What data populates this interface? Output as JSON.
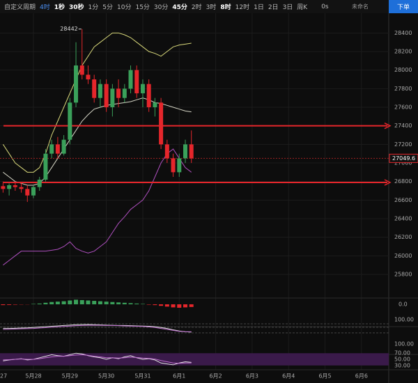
{
  "toolbar": {
    "label": "自定义周期",
    "periods": [
      "4时",
      "1秒",
      "30秒",
      "1分",
      "5分",
      "10分",
      "15分",
      "30分",
      "45分",
      "2时",
      "3时",
      "8时",
      "12时",
      "1日",
      "2日",
      "3日",
      "周K"
    ],
    "active_index": 0,
    "bold_indices": [
      1,
      2,
      8,
      11
    ],
    "timer": "0s",
    "layout_name": "未命名",
    "order_button": "下单"
  },
  "chart_data": {
    "type": "candlestick",
    "xticks": [
      {
        "value": -1,
        "label": "27"
      },
      {
        "value": 5,
        "label": "5月28"
      },
      {
        "value": 11,
        "label": "5月29"
      },
      {
        "value": 17,
        "label": "5月30"
      },
      {
        "value": 23,
        "label": "5月31"
      },
      {
        "value": 29,
        "label": "6月1"
      },
      {
        "value": 35,
        "label": "6月2"
      },
      {
        "value": 41,
        "label": "6月3"
      },
      {
        "value": 47,
        "label": "6月4"
      },
      {
        "value": 53,
        "label": "6月5"
      },
      {
        "value": 59,
        "label": "6月6"
      }
    ],
    "ylim": [
      25680,
      28530
    ],
    "yticks": [
      25800,
      26000,
      26200,
      26400,
      26600,
      26800,
      27000,
      27200,
      27400,
      27600,
      27800,
      28000,
      28200,
      28400
    ],
    "up_color": "#3aa05a",
    "down_color": "#e5262b",
    "candles": [
      {
        "open": 26750,
        "high": 26800,
        "low": 26680,
        "close": 26720
      },
      {
        "open": 26720,
        "high": 26780,
        "low": 26650,
        "close": 26760
      },
      {
        "open": 26760,
        "high": 26800,
        "low": 26700,
        "close": 26740
      },
      {
        "open": 26740,
        "high": 26790,
        "low": 26680,
        "close": 26720
      },
      {
        "open": 26720,
        "high": 26760,
        "low": 26580,
        "close": 26650
      },
      {
        "open": 26650,
        "high": 26760,
        "low": 26620,
        "close": 26740
      },
      {
        "open": 26740,
        "high": 26850,
        "low": 26700,
        "close": 26820
      },
      {
        "open": 26820,
        "high": 27150,
        "low": 26800,
        "close": 27100
      },
      {
        "open": 27100,
        "high": 27250,
        "low": 27050,
        "close": 27200
      },
      {
        "open": 27200,
        "high": 27280,
        "low": 27050,
        "close": 27100
      },
      {
        "open": 27100,
        "high": 27300,
        "low": 27080,
        "close": 27250
      },
      {
        "open": 27250,
        "high": 27700,
        "low": 27200,
        "close": 27650
      },
      {
        "open": 27650,
        "high": 28300,
        "low": 27600,
        "close": 28050
      },
      {
        "open": 28050,
        "high": 28442,
        "low": 27900,
        "close": 27950
      },
      {
        "open": 27950,
        "high": 28050,
        "low": 27850,
        "close": 27900
      },
      {
        "open": 27900,
        "high": 27950,
        "low": 27650,
        "close": 27700
      },
      {
        "open": 27700,
        "high": 27900,
        "low": 27600,
        "close": 27850
      },
      {
        "open": 27850,
        "high": 27900,
        "low": 27550,
        "close": 27600
      },
      {
        "open": 27600,
        "high": 27850,
        "low": 27500,
        "close": 27800
      },
      {
        "open": 27800,
        "high": 27900,
        "low": 27600,
        "close": 27700
      },
      {
        "open": 27700,
        "high": 27850,
        "low": 27650,
        "close": 27800
      },
      {
        "open": 27800,
        "high": 28050,
        "low": 27750,
        "close": 28000
      },
      {
        "open": 28000,
        "high": 28050,
        "low": 27700,
        "close": 27750
      },
      {
        "open": 27750,
        "high": 27900,
        "low": 27600,
        "close": 27850
      },
      {
        "open": 27850,
        "high": 27900,
        "low": 27550,
        "close": 27600
      },
      {
        "open": 27600,
        "high": 27700,
        "low": 27500,
        "close": 27650
      },
      {
        "open": 27650,
        "high": 27700,
        "low": 27150,
        "close": 27200
      },
      {
        "open": 27200,
        "high": 27250,
        "low": 27000,
        "close": 27050
      },
      {
        "open": 27050,
        "high": 27100,
        "low": 26850,
        "close": 26900
      },
      {
        "open": 26900,
        "high": 27100,
        "low": 26850,
        "close": 27050
      },
      {
        "open": 27050,
        "high": 27250,
        "low": 27000,
        "close": 27200
      },
      {
        "open": 27200,
        "high": 27350,
        "low": 27000,
        "close": 27049.6
      }
    ],
    "max_index": 13,
    "last_price": 27049.6,
    "levels": [
      27400,
      26790
    ],
    "level_color": "#e5262b",
    "series": [
      {
        "color": "#d8d87a",
        "values": [
          27200,
          27100,
          27000,
          26950,
          26900,
          26900,
          26950,
          27100,
          27300,
          27450,
          27600,
          27750,
          27900,
          28050,
          28150,
          28250,
          28300,
          28350,
          28400,
          28400,
          28380,
          28350,
          28300,
          28250,
          28200,
          28180,
          28150,
          28200,
          28250,
          28270,
          28280,
          28290
        ]
      },
      {
        "color": "#d8d8c8",
        "values": [
          26900,
          26850,
          26800,
          26780,
          26760,
          26760,
          26780,
          26850,
          26950,
          27050,
          27150,
          27250,
          27350,
          27450,
          27520,
          27580,
          27600,
          27620,
          27630,
          27640,
          27650,
          27660,
          27680,
          27700,
          27680,
          27650,
          27640,
          27620,
          27600,
          27580,
          27560,
          27550
        ]
      },
      {
        "color": "#b050c0",
        "values": [
          25900,
          25950,
          26000,
          26050,
          26050,
          26050,
          26050,
          26050,
          26060,
          26070,
          26100,
          26150,
          26080,
          26050,
          26030,
          26050,
          26100,
          26150,
          26250,
          26350,
          26420,
          26500,
          26550,
          26600,
          26700,
          26850,
          27000,
          27100,
          27150,
          27050,
          26950,
          26900
        ]
      }
    ],
    "macd": {
      "ylim": [
        -100,
        100
      ],
      "yticks": [
        {
          "value": 0,
          "label": "0.0"
        }
      ],
      "values": [
        -10,
        -8,
        -5,
        -3,
        -2,
        5,
        10,
        20,
        30,
        35,
        40,
        50,
        60,
        55,
        50,
        45,
        40,
        35,
        30,
        25,
        20,
        15,
        10,
        5,
        -5,
        -10,
        -20,
        -30,
        -40,
        -45,
        -40,
        -35
      ]
    },
    "panel2": {
      "ylim": [
        0,
        100
      ],
      "yticks": [
        {
          "value": 100,
          "label": "100.00"
        }
      ],
      "series": [
        {
          "color": "#e0e0e0",
          "values": [
            55,
            55,
            56,
            57,
            58,
            60,
            62,
            64,
            66,
            68,
            70,
            72,
            74,
            75,
            75,
            74,
            73,
            72,
            71,
            70,
            70,
            69,
            68,
            67,
            66,
            64,
            60,
            55,
            48,
            42,
            38,
            36
          ]
        },
        {
          "color": "#c070d0",
          "values": [
            50,
            51,
            52,
            53,
            54,
            55,
            57,
            59,
            61,
            63,
            65,
            67,
            69,
            70,
            71,
            71,
            71,
            70,
            70,
            69,
            68,
            67,
            66,
            65,
            63,
            60,
            55,
            50,
            45,
            40,
            38,
            38
          ]
        }
      ]
    },
    "panel3": {
      "ylim": [
        0,
        100
      ],
      "yticks": [
        {
          "value": 100,
          "label": "100.00"
        },
        {
          "value": 70,
          "label": "70.00"
        },
        {
          "value": 50,
          "label": "50.00"
        },
        {
          "value": 30,
          "label": "30.00"
        }
      ],
      "series": [
        {
          "color": "#e0e0e0",
          "values": [
            45,
            48,
            50,
            52,
            48,
            50,
            55,
            60,
            65,
            62,
            60,
            65,
            70,
            68,
            62,
            58,
            55,
            50,
            55,
            52,
            58,
            62,
            55,
            50,
            52,
            48,
            38,
            35,
            32,
            38,
            42,
            40
          ]
        },
        {
          "color": "#c070d0",
          "values": [
            48,
            49,
            50,
            51,
            50,
            50,
            52,
            55,
            58,
            60,
            60,
            62,
            64,
            65,
            63,
            60,
            58,
            55,
            55,
            54,
            55,
            57,
            56,
            54,
            53,
            51,
            46,
            42,
            38,
            37,
            38,
            38
          ]
        }
      ]
    }
  }
}
